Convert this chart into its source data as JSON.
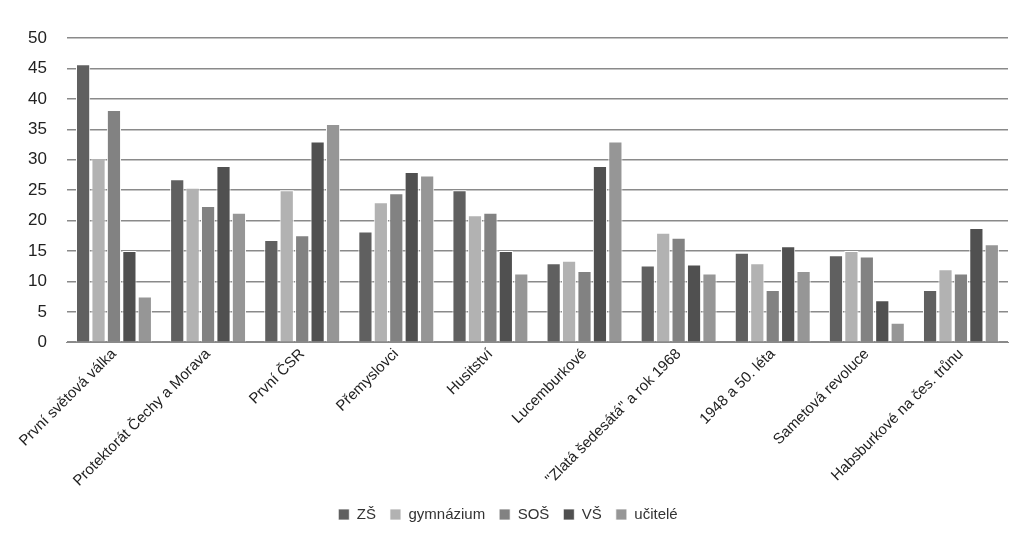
{
  "chart_data": {
    "type": "bar",
    "categories": [
      "První světová válka",
      "Protektorát Čechy a Morava",
      "První ČSR",
      "Přemyslovci",
      "Husitství",
      "Lucemburkové",
      "\"Zlatá šedesátá\" a rok 1968",
      "1948 a 50. léta",
      "Sametová revoluce",
      "Habsburkové na čes. trůnu"
    ],
    "series": [
      {
        "name": "ZŠ",
        "color": "#606060",
        "values": [
          45.7,
          26.8,
          16.8,
          18.2,
          25,
          13,
          12.6,
          14.7,
          14.3,
          8.6
        ]
      },
      {
        "name": "gymnázium",
        "color": "#b2b2b2",
        "values": [
          30.3,
          25.4,
          25,
          23,
          20.9,
          13.4,
          18,
          13,
          15,
          12
        ]
      },
      {
        "name": "SOŠ",
        "color": "#828282",
        "values": [
          38.2,
          22.4,
          17.6,
          24.5,
          21.3,
          11.7,
          17.2,
          8.6,
          14.1,
          11.3
        ]
      },
      {
        "name": "VŠ",
        "color": "#505050",
        "values": [
          15,
          29,
          33,
          28,
          15,
          29,
          12.8,
          15.8,
          6.9,
          18.8
        ]
      },
      {
        "name": "učitelé",
        "color": "#969696",
        "values": [
          7.5,
          21.3,
          35.9,
          27.4,
          11.3,
          33,
          11.3,
          11.7,
          3.2,
          16.1
        ]
      }
    ],
    "ylim": [
      0,
      50
    ],
    "yticks": [
      0,
      5,
      10,
      15,
      20,
      25,
      30,
      35,
      40,
      45,
      50
    ],
    "grid": "y",
    "legend": "bottom"
  }
}
